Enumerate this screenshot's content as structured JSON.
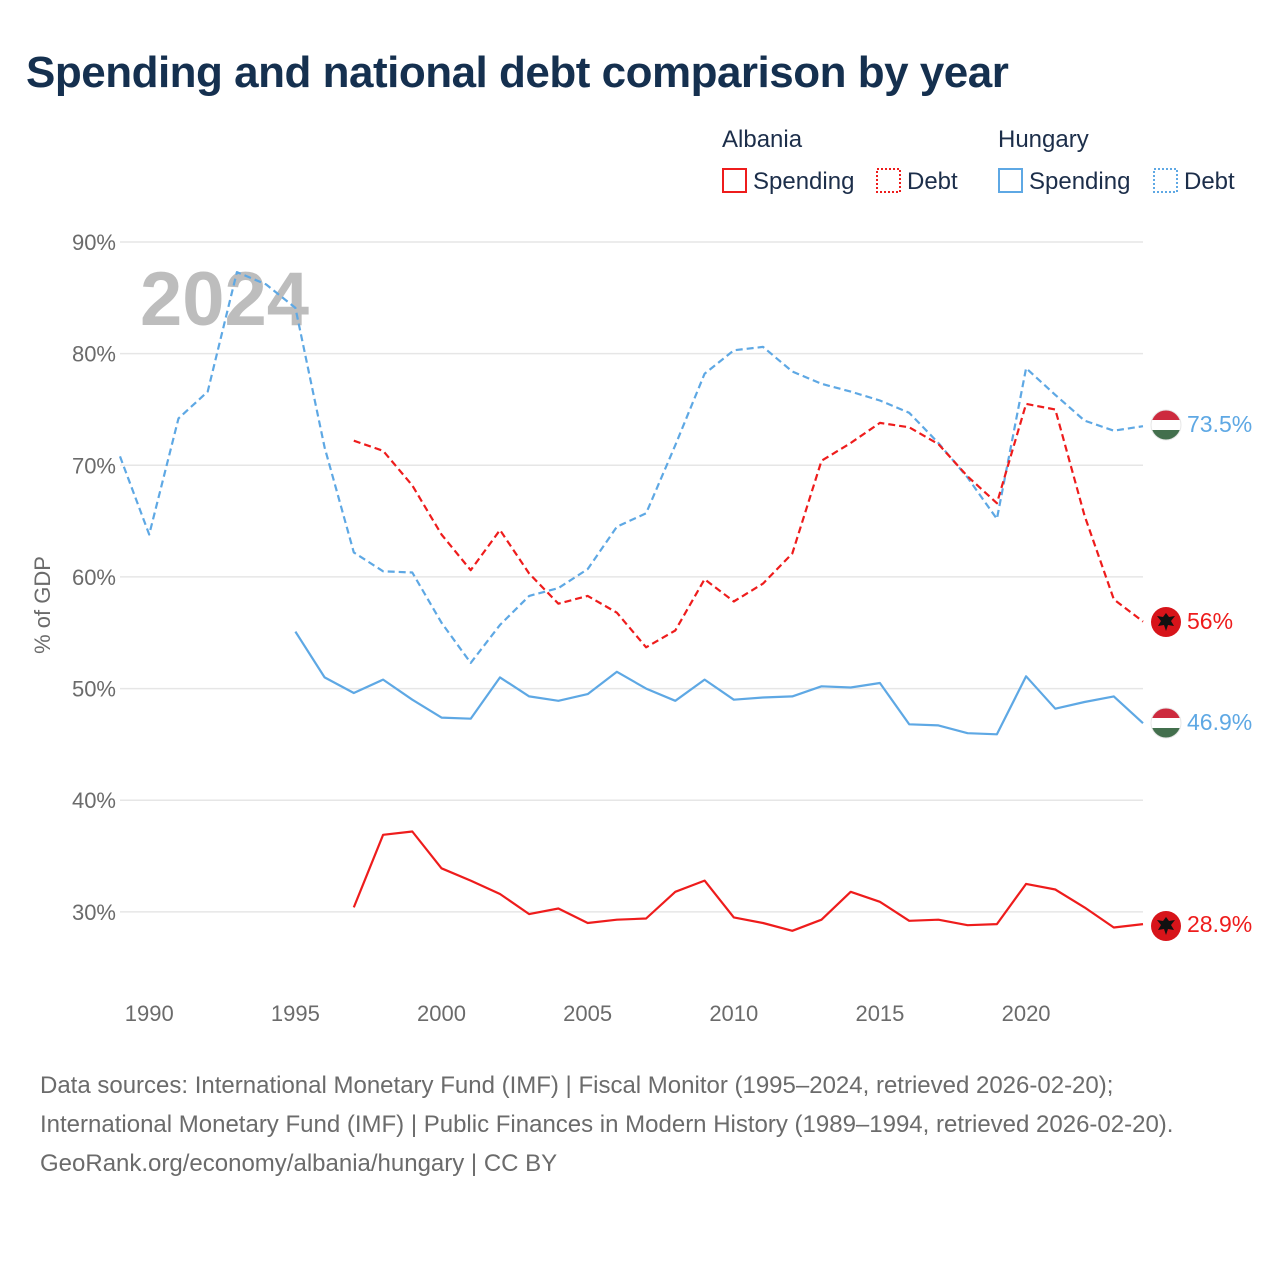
{
  "title": "Spending and national debt comparison by year",
  "footer": {
    "sources": "Data sources: International Monetary Fund (IMF) | Fiscal Monitor (1995–2024, retrieved 2026-02-20); International Monetary Fund (IMF) | Public Finances in Modern History (1989–1994, retrieved 2026-02-20).",
    "credit": "GeoRank.org/economy/albania/hungary | CC BY"
  },
  "chart_data": {
    "type": "line",
    "title": "Spending and national debt comparison by year",
    "year_label": "2024",
    "xlabel": "",
    "ylabel": "% of GDP",
    "xlim": [
      1989,
      2024
    ],
    "ylim": [
      23,
      90
    ],
    "x_ticks": [
      1990,
      1995,
      2000,
      2005,
      2010,
      2015,
      2020
    ],
    "y_ticks": [
      30,
      40,
      50,
      60,
      70,
      80,
      90
    ],
    "y_tick_labels": [
      "30%",
      "40%",
      "50%",
      "60%",
      "70%",
      "80%",
      "90%"
    ],
    "grid": true,
    "legend": {
      "position": "top-right",
      "groups": [
        {
          "name": "Albania",
          "items": [
            {
              "label": "Spending",
              "style": "solid"
            },
            {
              "label": "Debt",
              "style": "dotted"
            }
          ]
        },
        {
          "name": "Hungary",
          "items": [
            {
              "label": "Spending",
              "style": "solid"
            },
            {
              "label": "Debt",
              "style": "dotted"
            }
          ]
        }
      ]
    },
    "colors": {
      "Albania": "#ee1c1c",
      "Hungary": "#5ea8e4"
    },
    "series": [
      {
        "key": "hungary-debt",
        "country": "Hungary",
        "metric": "Debt",
        "style": "dashed",
        "end_label": "73.5%",
        "x": [
          1989,
          1990,
          1991,
          1992,
          1993,
          1994,
          1995,
          1996,
          1997,
          1998,
          1999,
          2000,
          2001,
          2002,
          2003,
          2004,
          2005,
          2006,
          2007,
          2008,
          2009,
          2010,
          2011,
          2012,
          2013,
          2014,
          2015,
          2016,
          2017,
          2018,
          2019,
          2020,
          2021,
          2022,
          2023,
          2024
        ],
        "values": [
          70.8,
          63.8,
          74.2,
          76.6,
          87.3,
          86.2,
          84.1,
          71.6,
          62.2,
          60.5,
          60.4,
          55.9,
          52.3,
          55.7,
          58.3,
          59.0,
          60.7,
          64.5,
          65.7,
          71.8,
          78.2,
          80.3,
          80.6,
          78.4,
          77.3,
          76.6,
          75.8,
          74.7,
          72.0,
          68.9,
          65.2,
          78.7,
          76.3,
          74.0,
          73.1,
          73.5
        ]
      },
      {
        "key": "albania-debt",
        "country": "Albania",
        "metric": "Debt",
        "style": "dashed",
        "end_label": "56%",
        "x": [
          1997,
          1998,
          1999,
          2000,
          2001,
          2002,
          2003,
          2004,
          2005,
          2006,
          2007,
          2008,
          2009,
          2010,
          2011,
          2012,
          2013,
          2014,
          2015,
          2016,
          2017,
          2018,
          2019,
          2020,
          2021,
          2022,
          2023,
          2024
        ],
        "values": [
          72.2,
          71.3,
          68.2,
          63.8,
          60.6,
          64.2,
          60.3,
          57.6,
          58.3,
          56.8,
          53.7,
          55.2,
          59.8,
          57.8,
          59.4,
          62.1,
          70.4,
          72.0,
          73.8,
          73.4,
          71.9,
          69.0,
          66.6,
          75.5,
          75.0,
          65.5,
          58.0,
          56.0
        ]
      },
      {
        "key": "hungary-spending",
        "country": "Hungary",
        "metric": "Spending",
        "style": "solid",
        "end_label": "46.9%",
        "x": [
          1995,
          1996,
          1997,
          1998,
          1999,
          2000,
          2001,
          2002,
          2003,
          2004,
          2005,
          2006,
          2007,
          2008,
          2009,
          2010,
          2011,
          2012,
          2013,
          2014,
          2015,
          2016,
          2017,
          2018,
          2019,
          2020,
          2021,
          2022,
          2023,
          2024
        ],
        "values": [
          55.1,
          51.0,
          49.6,
          50.8,
          49.0,
          47.4,
          47.3,
          51.0,
          49.3,
          48.9,
          49.5,
          51.5,
          50.0,
          48.9,
          50.8,
          49.0,
          49.2,
          49.3,
          50.2,
          50.1,
          50.5,
          46.8,
          46.7,
          46.0,
          45.9,
          51.1,
          48.2,
          48.8,
          49.3,
          46.9
        ]
      },
      {
        "key": "albania-spending",
        "country": "Albania",
        "metric": "Spending",
        "style": "solid",
        "end_label": "28.9%",
        "x": [
          1997,
          1998,
          1999,
          2000,
          2001,
          2002,
          2003,
          2004,
          2005,
          2006,
          2007,
          2008,
          2009,
          2010,
          2011,
          2012,
          2013,
          2014,
          2015,
          2016,
          2017,
          2018,
          2019,
          2020,
          2021,
          2022,
          2023,
          2024
        ],
        "values": [
          30.4,
          36.9,
          37.2,
          33.9,
          32.8,
          31.6,
          29.8,
          30.3,
          29.0,
          29.3,
          29.4,
          31.8,
          32.8,
          29.5,
          29.0,
          28.3,
          29.3,
          31.8,
          30.9,
          29.2,
          29.3,
          28.8,
          28.9,
          32.5,
          32.0,
          30.4,
          28.6,
          28.9
        ]
      }
    ]
  }
}
